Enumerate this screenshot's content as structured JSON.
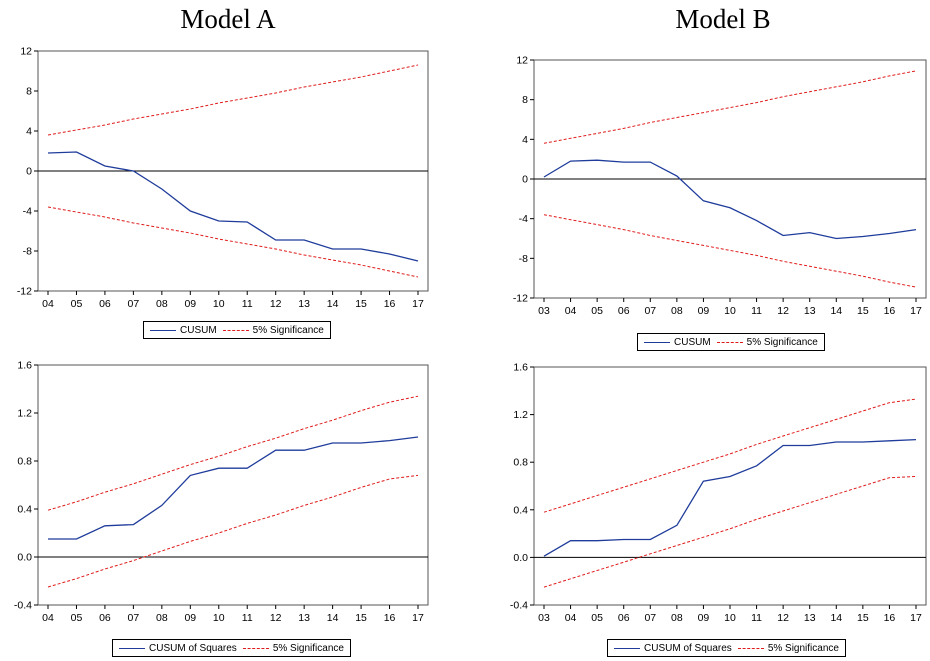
{
  "titles": {
    "model_a": "Model A",
    "model_b": "Model B"
  },
  "colors": {
    "series": "#1f3c9b",
    "bound": "#e01b1b",
    "axis": "#000000"
  },
  "legends": {
    "cusum": {
      "series": "CUSUM",
      "bound": "5% Significance"
    },
    "cusumsq": {
      "series": "CUSUM of Squares",
      "bound": "5% Significance"
    }
  },
  "chart_data": [
    {
      "type": "line",
      "panel": "model-a-cusum",
      "categories": [
        "04",
        "05",
        "06",
        "07",
        "08",
        "09",
        "10",
        "11",
        "12",
        "13",
        "14",
        "15",
        "16",
        "17"
      ],
      "ylim": [
        -12,
        12
      ],
      "yticks": [
        -12,
        -8,
        -4,
        0,
        4,
        8,
        12
      ],
      "ytick_labels": [
        "-12",
        "-8",
        "-4",
        "0",
        "4",
        "8",
        "12"
      ],
      "series": [
        {
          "name": "CUSUM",
          "values": [
            1.8,
            1.9,
            0.5,
            0.0,
            -1.8,
            -4.0,
            -5.0,
            -5.1,
            -6.9,
            -6.9,
            -7.8,
            -7.8,
            -8.3,
            -9.0
          ]
        },
        {
          "name": "5% Significance",
          "values": [
            3.6,
            4.1,
            4.6,
            5.2,
            5.7,
            6.2,
            6.8,
            7.3,
            7.8,
            8.4,
            8.9,
            9.4,
            10.0,
            10.6
          ]
        },
        {
          "name": "5% Significance",
          "values": [
            -3.6,
            -4.1,
            -4.6,
            -5.2,
            -5.7,
            -6.2,
            -6.8,
            -7.3,
            -7.8,
            -8.4,
            -8.9,
            -9.4,
            -10.0,
            -10.6
          ]
        }
      ]
    },
    {
      "type": "line",
      "panel": "model-b-cusum",
      "categories": [
        "03",
        "04",
        "05",
        "06",
        "07",
        "08",
        "09",
        "10",
        "11",
        "12",
        "13",
        "14",
        "15",
        "16",
        "17"
      ],
      "ylim": [
        -12,
        12
      ],
      "yticks": [
        -12,
        -8,
        -4,
        0,
        4,
        8,
        12
      ],
      "ytick_labels": [
        "-12",
        "-8",
        "-4",
        "0",
        "4",
        "8",
        "12"
      ],
      "series": [
        {
          "name": "CUSUM",
          "values": [
            0.2,
            1.8,
            1.9,
            1.7,
            1.7,
            0.3,
            -2.2,
            -2.9,
            -4.2,
            -5.7,
            -5.4,
            -6.0,
            -5.8,
            -5.5,
            -5.1
          ]
        },
        {
          "name": "5% Significance",
          "values": [
            3.6,
            4.1,
            4.6,
            5.1,
            5.7,
            6.2,
            6.7,
            7.2,
            7.7,
            8.3,
            8.8,
            9.3,
            9.8,
            10.4,
            10.9
          ]
        },
        {
          "name": "5% Significance",
          "values": [
            -3.6,
            -4.1,
            -4.6,
            -5.1,
            -5.7,
            -6.2,
            -6.7,
            -7.2,
            -7.7,
            -8.3,
            -8.8,
            -9.3,
            -9.8,
            -10.4,
            -10.9
          ]
        }
      ]
    },
    {
      "type": "line",
      "panel": "model-a-cusumsq",
      "categories": [
        "04",
        "05",
        "06",
        "07",
        "08",
        "09",
        "10",
        "11",
        "12",
        "13",
        "14",
        "15",
        "16",
        "17"
      ],
      "ylim": [
        -0.4,
        1.6
      ],
      "yticks": [
        -0.4,
        0.0,
        0.4,
        0.8,
        1.2,
        1.6
      ],
      "ytick_labels": [
        "-0.4",
        "0.0",
        "0.4",
        "0.8",
        "1.2",
        "1.6"
      ],
      "series": [
        {
          "name": "CUSUM of Squares",
          "values": [
            0.15,
            0.15,
            0.26,
            0.27,
            0.43,
            0.68,
            0.74,
            0.74,
            0.89,
            0.89,
            0.95,
            0.95,
            0.97,
            1.0
          ]
        },
        {
          "name": "5% Significance",
          "values": [
            0.39,
            0.46,
            0.54,
            0.61,
            0.69,
            0.77,
            0.84,
            0.92,
            0.99,
            1.07,
            1.14,
            1.22,
            1.29,
            1.34
          ]
        },
        {
          "name": "5% Significance",
          "values": [
            -0.25,
            -0.18,
            -0.1,
            -0.03,
            0.05,
            0.13,
            0.2,
            0.28,
            0.35,
            0.43,
            0.5,
            0.58,
            0.65,
            0.68
          ]
        }
      ]
    },
    {
      "type": "line",
      "panel": "model-b-cusumsq",
      "categories": [
        "03",
        "04",
        "05",
        "06",
        "07",
        "08",
        "09",
        "10",
        "11",
        "12",
        "13",
        "14",
        "15",
        "16",
        "17"
      ],
      "ylim": [
        -0.4,
        1.6
      ],
      "yticks": [
        -0.4,
        0.0,
        0.4,
        0.8,
        1.2,
        1.6
      ],
      "ytick_labels": [
        "-0.4",
        "0.0",
        "0.4",
        "0.8",
        "1.2",
        "1.6"
      ],
      "series": [
        {
          "name": "CUSUM of Squares",
          "values": [
            0.01,
            0.14,
            0.14,
            0.15,
            0.15,
            0.27,
            0.64,
            0.68,
            0.77,
            0.94,
            0.94,
            0.97,
            0.97,
            0.98,
            0.99
          ]
        },
        {
          "name": "5% Significance",
          "values": [
            0.38,
            0.45,
            0.52,
            0.59,
            0.66,
            0.73,
            0.8,
            0.87,
            0.95,
            1.02,
            1.09,
            1.16,
            1.23,
            1.3,
            1.33
          ]
        },
        {
          "name": "5% Significance",
          "values": [
            -0.25,
            -0.18,
            -0.11,
            -0.04,
            0.03,
            0.1,
            0.17,
            0.24,
            0.32,
            0.39,
            0.46,
            0.53,
            0.6,
            0.67,
            0.68
          ]
        }
      ]
    }
  ]
}
